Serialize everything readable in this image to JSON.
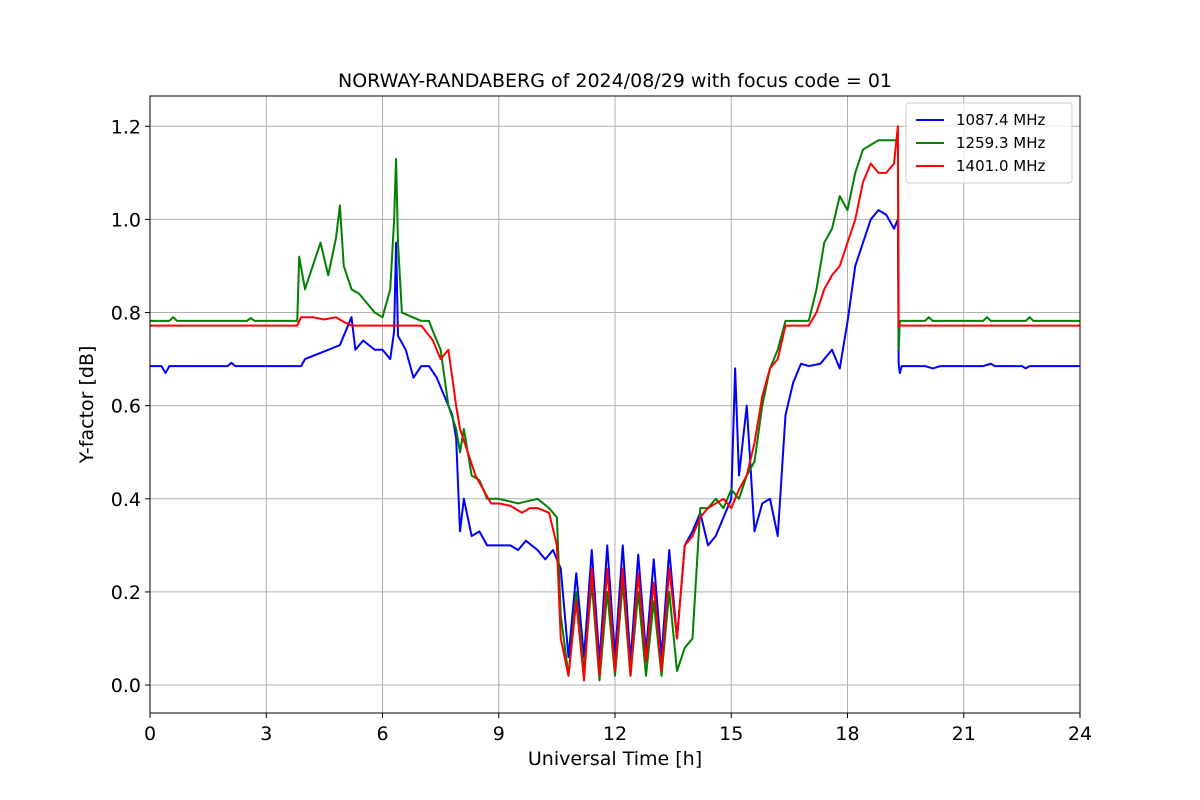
{
  "chart_data": {
    "type": "line",
    "title": "NORWAY-RANDABERG of 2024/08/29 with focus code = 01",
    "xlabel": "Universal Time [h]",
    "ylabel": "Y-factor [dB]",
    "xlim": [
      0,
      24
    ],
    "ylim": [
      -0.06,
      1.265
    ],
    "xticks": [
      0,
      3,
      6,
      9,
      12,
      15,
      18,
      21,
      24
    ],
    "xtick_labels": [
      "0",
      "3",
      "6",
      "9",
      "12",
      "15",
      "18",
      "21",
      "24"
    ],
    "yticks": [
      0.0,
      0.2,
      0.4,
      0.6,
      0.8,
      1.0,
      1.2
    ],
    "ytick_labels": [
      "0.0",
      "0.2",
      "0.4",
      "0.6",
      "0.8",
      "1.0",
      "1.2"
    ],
    "grid": true,
    "legend_position": "top-right",
    "series": [
      {
        "name": "1087.4 MHz",
        "color": "#0000ff",
        "points": [
          [
            0,
            0.685
          ],
          [
            0.3,
            0.685
          ],
          [
            0.4,
            0.67
          ],
          [
            0.5,
            0.685
          ],
          [
            2.0,
            0.685
          ],
          [
            2.1,
            0.692
          ],
          [
            2.2,
            0.685
          ],
          [
            3.0,
            0.685
          ],
          [
            3.5,
            0.685
          ],
          [
            3.9,
            0.685
          ],
          [
            4.0,
            0.7
          ],
          [
            4.3,
            0.71
          ],
          [
            4.6,
            0.72
          ],
          [
            4.9,
            0.73
          ],
          [
            5.0,
            0.75
          ],
          [
            5.2,
            0.79
          ],
          [
            5.3,
            0.72
          ],
          [
            5.5,
            0.74
          ],
          [
            5.8,
            0.72
          ],
          [
            6.0,
            0.72
          ],
          [
            6.2,
            0.7
          ],
          [
            6.3,
            0.76
          ],
          [
            6.35,
            0.95
          ],
          [
            6.4,
            0.75
          ],
          [
            6.6,
            0.72
          ],
          [
            6.8,
            0.66
          ],
          [
            7.0,
            0.685
          ],
          [
            7.2,
            0.685
          ],
          [
            7.4,
            0.66
          ],
          [
            7.6,
            0.62
          ],
          [
            7.8,
            0.58
          ],
          [
            7.9,
            0.53
          ],
          [
            8.0,
            0.33
          ],
          [
            8.1,
            0.4
          ],
          [
            8.3,
            0.32
          ],
          [
            8.5,
            0.33
          ],
          [
            8.7,
            0.3
          ],
          [
            9.0,
            0.3
          ],
          [
            9.3,
            0.3
          ],
          [
            9.5,
            0.29
          ],
          [
            9.7,
            0.31
          ],
          [
            10.0,
            0.29
          ],
          [
            10.2,
            0.27
          ],
          [
            10.4,
            0.29
          ],
          [
            10.6,
            0.25
          ],
          [
            10.8,
            0.06
          ],
          [
            11.0,
            0.24
          ],
          [
            11.2,
            0.06
          ],
          [
            11.4,
            0.29
          ],
          [
            11.6,
            0.05
          ],
          [
            11.8,
            0.3
          ],
          [
            12.0,
            0.06
          ],
          [
            12.2,
            0.3
          ],
          [
            12.4,
            0.05
          ],
          [
            12.6,
            0.28
          ],
          [
            12.8,
            0.07
          ],
          [
            13.0,
            0.27
          ],
          [
            13.2,
            0.06
          ],
          [
            13.4,
            0.29
          ],
          [
            13.6,
            0.1
          ],
          [
            13.8,
            0.3
          ],
          [
            14.0,
            0.33
          ],
          [
            14.2,
            0.37
          ],
          [
            14.4,
            0.3
          ],
          [
            14.6,
            0.32
          ],
          [
            14.8,
            0.36
          ],
          [
            15.0,
            0.4
          ],
          [
            15.1,
            0.68
          ],
          [
            15.2,
            0.45
          ],
          [
            15.4,
            0.6
          ],
          [
            15.6,
            0.33
          ],
          [
            15.8,
            0.39
          ],
          [
            16.0,
            0.4
          ],
          [
            16.2,
            0.32
          ],
          [
            16.4,
            0.58
          ],
          [
            16.6,
            0.65
          ],
          [
            16.8,
            0.69
          ],
          [
            17.0,
            0.685
          ],
          [
            17.3,
            0.69
          ],
          [
            17.6,
            0.72
          ],
          [
            17.8,
            0.68
          ],
          [
            18.0,
            0.78
          ],
          [
            18.2,
            0.9
          ],
          [
            18.4,
            0.95
          ],
          [
            18.6,
            1.0
          ],
          [
            18.8,
            1.02
          ],
          [
            19.0,
            1.01
          ],
          [
            19.2,
            0.98
          ],
          [
            19.3,
            1.0
          ],
          [
            19.32,
            0.69
          ],
          [
            19.35,
            0.67
          ],
          [
            19.4,
            0.685
          ],
          [
            20.0,
            0.685
          ],
          [
            20.2,
            0.68
          ],
          [
            20.4,
            0.685
          ],
          [
            21.5,
            0.685
          ],
          [
            21.7,
            0.69
          ],
          [
            21.8,
            0.685
          ],
          [
            22.5,
            0.685
          ],
          [
            22.6,
            0.68
          ],
          [
            22.7,
            0.685
          ],
          [
            24,
            0.685
          ]
        ]
      },
      {
        "name": "1259.3 MHz",
        "color": "#008000",
        "points": [
          [
            0,
            0.782
          ],
          [
            0.5,
            0.782
          ],
          [
            0.6,
            0.79
          ],
          [
            0.7,
            0.782
          ],
          [
            2.5,
            0.782
          ],
          [
            2.6,
            0.788
          ],
          [
            2.7,
            0.782
          ],
          [
            3.8,
            0.782
          ],
          [
            3.85,
            0.92
          ],
          [
            4.0,
            0.85
          ],
          [
            4.2,
            0.9
          ],
          [
            4.4,
            0.95
          ],
          [
            4.6,
            0.88
          ],
          [
            4.8,
            0.96
          ],
          [
            4.9,
            1.03
          ],
          [
            5.0,
            0.9
          ],
          [
            5.2,
            0.85
          ],
          [
            5.4,
            0.84
          ],
          [
            5.6,
            0.82
          ],
          [
            5.8,
            0.8
          ],
          [
            6.0,
            0.79
          ],
          [
            6.2,
            0.85
          ],
          [
            6.3,
            1.0
          ],
          [
            6.35,
            1.13
          ],
          [
            6.4,
            0.95
          ],
          [
            6.5,
            0.8
          ],
          [
            7.0,
            0.782
          ],
          [
            7.2,
            0.782
          ],
          [
            7.3,
            0.76
          ],
          [
            7.5,
            0.72
          ],
          [
            7.7,
            0.6
          ],
          [
            7.9,
            0.55
          ],
          [
            8.0,
            0.5
          ],
          [
            8.1,
            0.55
          ],
          [
            8.3,
            0.45
          ],
          [
            8.5,
            0.44
          ],
          [
            8.7,
            0.4
          ],
          [
            9.0,
            0.4
          ],
          [
            9.5,
            0.39
          ],
          [
            10.0,
            0.4
          ],
          [
            10.3,
            0.38
          ],
          [
            10.5,
            0.36
          ],
          [
            10.6,
            0.15
          ],
          [
            10.8,
            0.02
          ],
          [
            11.0,
            0.2
          ],
          [
            11.2,
            0.03
          ],
          [
            11.4,
            0.22
          ],
          [
            11.6,
            0.01
          ],
          [
            11.8,
            0.2
          ],
          [
            12.0,
            0.02
          ],
          [
            12.2,
            0.22
          ],
          [
            12.4,
            0.02
          ],
          [
            12.6,
            0.2
          ],
          [
            12.8,
            0.02
          ],
          [
            13.0,
            0.18
          ],
          [
            13.2,
            0.02
          ],
          [
            13.4,
            0.2
          ],
          [
            13.6,
            0.03
          ],
          [
            13.8,
            0.08
          ],
          [
            14.0,
            0.1
          ],
          [
            14.2,
            0.38
          ],
          [
            14.4,
            0.38
          ],
          [
            14.6,
            0.4
          ],
          [
            14.8,
            0.38
          ],
          [
            15.0,
            0.42
          ],
          [
            15.2,
            0.4
          ],
          [
            15.4,
            0.45
          ],
          [
            15.6,
            0.48
          ],
          [
            15.8,
            0.6
          ],
          [
            16.0,
            0.68
          ],
          [
            16.2,
            0.72
          ],
          [
            16.4,
            0.782
          ],
          [
            16.6,
            0.782
          ],
          [
            17.0,
            0.782
          ],
          [
            17.2,
            0.85
          ],
          [
            17.4,
            0.95
          ],
          [
            17.6,
            0.98
          ],
          [
            17.8,
            1.05
          ],
          [
            18.0,
            1.02
          ],
          [
            18.2,
            1.1
          ],
          [
            18.4,
            1.15
          ],
          [
            18.6,
            1.16
          ],
          [
            18.8,
            1.17
          ],
          [
            19.0,
            1.17
          ],
          [
            19.3,
            1.17
          ],
          [
            19.32,
            0.72
          ],
          [
            19.35,
            0.782
          ],
          [
            20.0,
            0.782
          ],
          [
            20.1,
            0.79
          ],
          [
            20.2,
            0.782
          ],
          [
            21.5,
            0.782
          ],
          [
            21.6,
            0.79
          ],
          [
            21.7,
            0.782
          ],
          [
            22.6,
            0.782
          ],
          [
            22.7,
            0.79
          ],
          [
            22.8,
            0.782
          ],
          [
            24,
            0.782
          ]
        ]
      },
      {
        "name": "1401.0 MHz",
        "color": "#ff0000",
        "points": [
          [
            0,
            0.772
          ],
          [
            3.8,
            0.772
          ],
          [
            3.9,
            0.79
          ],
          [
            4.2,
            0.79
          ],
          [
            4.5,
            0.785
          ],
          [
            4.8,
            0.79
          ],
          [
            5.0,
            0.78
          ],
          [
            5.2,
            0.772
          ],
          [
            6.0,
            0.772
          ],
          [
            6.4,
            0.772
          ],
          [
            7.0,
            0.772
          ],
          [
            7.3,
            0.74
          ],
          [
            7.5,
            0.7
          ],
          [
            7.7,
            0.72
          ],
          [
            7.9,
            0.6
          ],
          [
            8.0,
            0.55
          ],
          [
            8.2,
            0.5
          ],
          [
            8.4,
            0.45
          ],
          [
            8.6,
            0.42
          ],
          [
            8.8,
            0.39
          ],
          [
            9.0,
            0.39
          ],
          [
            9.3,
            0.385
          ],
          [
            9.6,
            0.37
          ],
          [
            9.8,
            0.38
          ],
          [
            10.0,
            0.38
          ],
          [
            10.3,
            0.37
          ],
          [
            10.5,
            0.3
          ],
          [
            10.6,
            0.1
          ],
          [
            10.8,
            0.02
          ],
          [
            11.0,
            0.18
          ],
          [
            11.2,
            0.01
          ],
          [
            11.4,
            0.25
          ],
          [
            11.6,
            0.02
          ],
          [
            11.8,
            0.25
          ],
          [
            12.0,
            0.03
          ],
          [
            12.2,
            0.25
          ],
          [
            12.4,
            0.02
          ],
          [
            12.6,
            0.24
          ],
          [
            12.8,
            0.05
          ],
          [
            13.0,
            0.22
          ],
          [
            13.2,
            0.03
          ],
          [
            13.4,
            0.25
          ],
          [
            13.6,
            0.1
          ],
          [
            13.8,
            0.3
          ],
          [
            14.0,
            0.32
          ],
          [
            14.2,
            0.36
          ],
          [
            14.4,
            0.38
          ],
          [
            14.6,
            0.39
          ],
          [
            14.8,
            0.4
          ],
          [
            15.0,
            0.38
          ],
          [
            15.2,
            0.42
          ],
          [
            15.4,
            0.45
          ],
          [
            15.6,
            0.52
          ],
          [
            15.8,
            0.62
          ],
          [
            16.0,
            0.68
          ],
          [
            16.2,
            0.7
          ],
          [
            16.4,
            0.772
          ],
          [
            16.8,
            0.772
          ],
          [
            17.0,
            0.772
          ],
          [
            17.2,
            0.8
          ],
          [
            17.4,
            0.85
          ],
          [
            17.6,
            0.88
          ],
          [
            17.8,
            0.9
          ],
          [
            18.0,
            0.95
          ],
          [
            18.2,
            1.0
          ],
          [
            18.4,
            1.08
          ],
          [
            18.6,
            1.12
          ],
          [
            18.8,
            1.1
          ],
          [
            19.0,
            1.1
          ],
          [
            19.2,
            1.12
          ],
          [
            19.3,
            1.2
          ],
          [
            19.32,
            0.77
          ],
          [
            19.35,
            0.772
          ],
          [
            24,
            0.772
          ]
        ]
      }
    ]
  }
}
